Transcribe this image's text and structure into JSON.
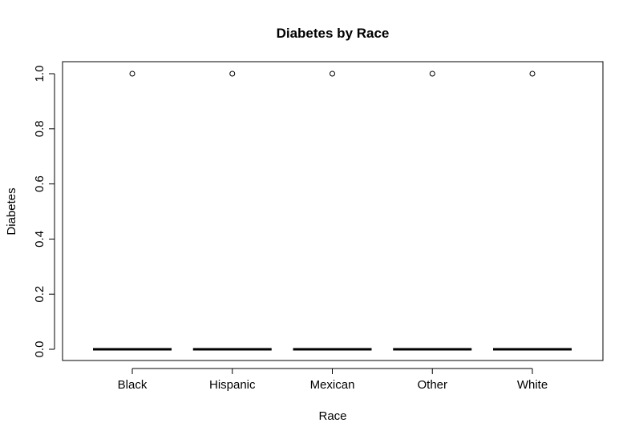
{
  "chart_data": {
    "type": "box",
    "title": "Diabetes by Race",
    "xlabel": "Race",
    "ylabel": "Diabetes",
    "categories": [
      "Black",
      "Hispanic",
      "Mexican",
      "Other",
      "White"
    ],
    "boxes": [
      {
        "category": "Black",
        "min": 0,
        "q1": 0,
        "median": 0,
        "q3": 0,
        "max": 0,
        "outliers": [
          1
        ]
      },
      {
        "category": "Hispanic",
        "min": 0,
        "q1": 0,
        "median": 0,
        "q3": 0,
        "max": 0,
        "outliers": [
          1
        ]
      },
      {
        "category": "Mexican",
        "min": 0,
        "q1": 0,
        "median": 0,
        "q3": 0,
        "max": 0,
        "outliers": [
          1
        ]
      },
      {
        "category": "Other",
        "min": 0,
        "q1": 0,
        "median": 0,
        "q3": 0,
        "max": 0,
        "outliers": [
          1
        ]
      },
      {
        "category": "White",
        "min": 0,
        "q1": 0,
        "median": 0,
        "q3": 0,
        "max": 0,
        "outliers": [
          1
        ]
      }
    ],
    "yticks": [
      0.0,
      0.2,
      0.4,
      0.6,
      0.8,
      1.0
    ],
    "ytick_labels": [
      "0.0",
      "0.2",
      "0.4",
      "0.6",
      "0.8",
      "1.0"
    ],
    "ylim": [
      0,
      1
    ],
    "grid": false,
    "legend": "none"
  }
}
